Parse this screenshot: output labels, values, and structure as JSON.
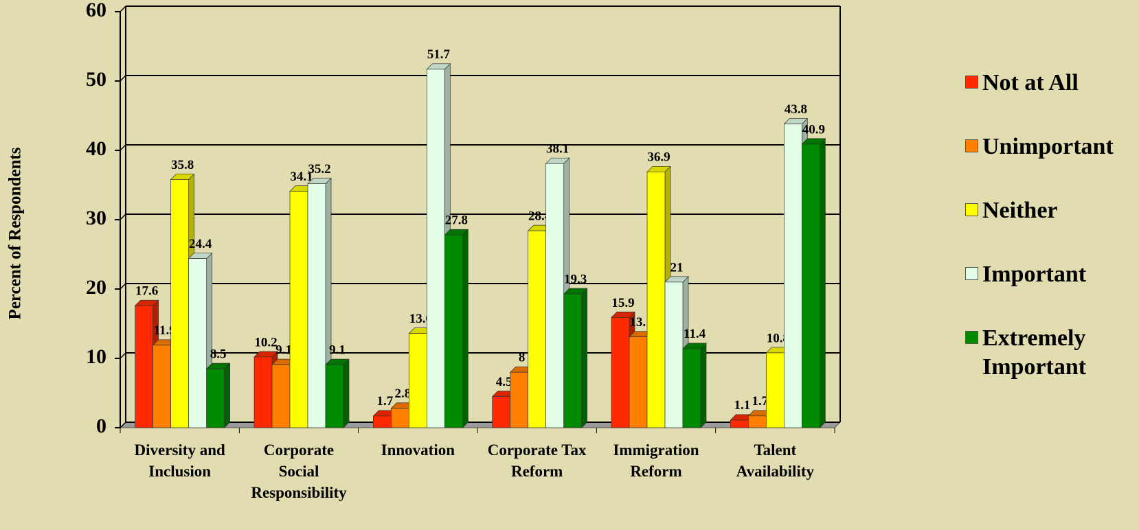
{
  "chart_data": {
    "type": "bar3d",
    "y_label": "Percent of Respondents",
    "categories": [
      "Diversity and Inclusion",
      "Corporate Social Responsibility",
      "Innovation",
      "Corporate Tax Reform",
      "Immigration Reform",
      "Talent Availability"
    ],
    "series": [
      {
        "name": "Not at All",
        "color": "#ff2a00",
        "values": [
          17.6,
          10.2,
          1.7,
          4.5,
          15.9,
          1.1
        ]
      },
      {
        "name": "Unimportant",
        "color": "#ff7f00",
        "values": [
          11.9,
          9.1,
          2.8,
          8,
          13.1,
          1.7
        ]
      },
      {
        "name": "Neither",
        "color": "#ffff00",
        "values": [
          35.8,
          34.1,
          13.6,
          28.4,
          36.9,
          10.8
        ]
      },
      {
        "name": "Important",
        "color": "#e2fde8",
        "values": [
          24.4,
          35.2,
          51.7,
          38.1,
          21,
          43.8
        ]
      },
      {
        "name": "Extremely Important",
        "color": "#008a00",
        "values": [
          8.5,
          9.1,
          27.8,
          19.3,
          11.4,
          40.9
        ]
      }
    ],
    "ylim": [
      0,
      60
    ],
    "yticks": [
      0,
      10,
      20,
      30,
      40,
      50,
      60
    ],
    "grid": true,
    "legend": "right"
  }
}
